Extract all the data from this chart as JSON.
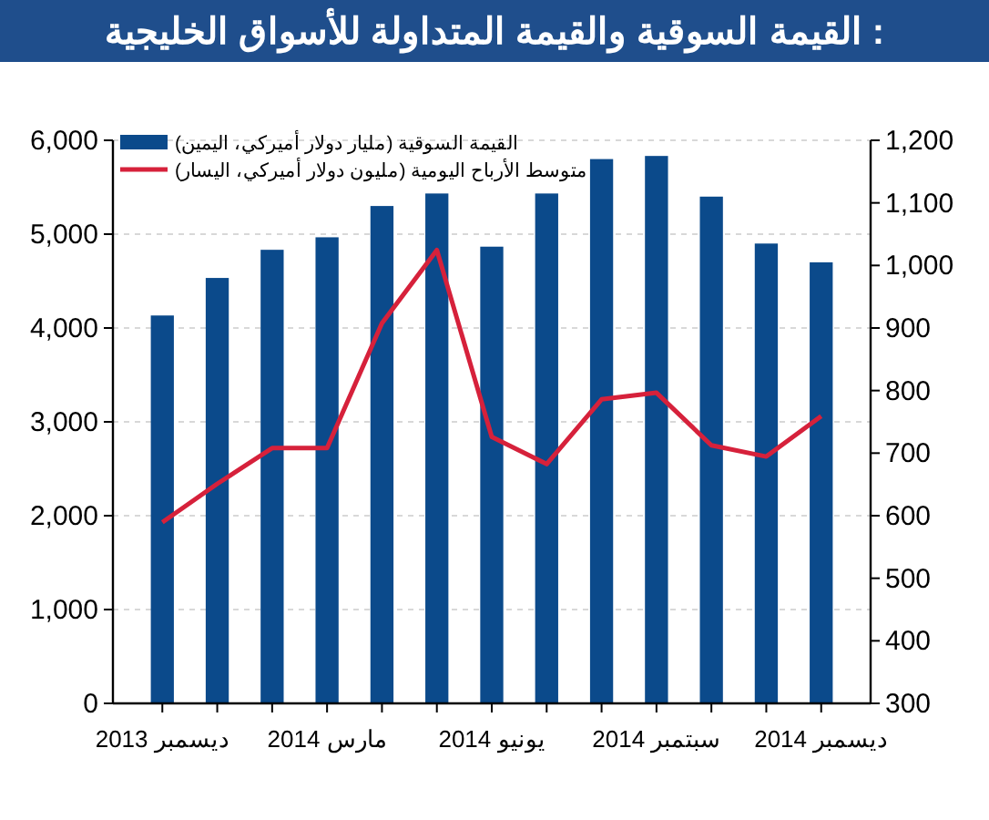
{
  "chart_data": {
    "type": "bar",
    "title": ": القيمة السوقية والقيمة المتداولة للأسواق الخليجية",
    "categories": [
      "ديسمبر 2013",
      null,
      null,
      "مارس 2014",
      null,
      null,
      "يونيو 2014",
      null,
      null,
      "سبتمبر 2014",
      null,
      null,
      "ديسمبر 2014"
    ],
    "series": [
      {
        "name": "القيمة السوقية (مليار دولار أميركي، اليمين)",
        "axis": "y2",
        "color": "#0b4a8b",
        "values": [
          920,
          980,
          1025,
          1045,
          1095,
          1115,
          1030,
          1115,
          1170,
          1175,
          1110,
          1035,
          1005
        ]
      },
      {
        "name": "متوسط الأرباح اليومية (مليون دولار أميركي، اليسار)",
        "type": "line",
        "color": "#d6213b",
        "values": [
          1930,
          2340,
          2720,
          2720,
          4050,
          4830,
          2840,
          2550,
          3240,
          3310,
          2750,
          2630,
          3060
        ]
      }
    ],
    "ylim": [
      0,
      6000
    ],
    "yticks": [
      0,
      {
        "value": 1000,
        "label": "1,000"
      },
      {
        "value": 2000,
        "label": "2,000"
      },
      {
        "value": 3000,
        "label": "3,000"
      },
      {
        "value": 4000,
        "label": "4,000"
      },
      {
        "value": 5000,
        "label": "5,000"
      },
      {
        "value": 6000,
        "label": "6,000"
      }
    ],
    "y2lim": [
      300,
      1200
    ],
    "y2ticks": [
      300,
      400,
      500,
      600,
      700,
      800,
      900,
      {
        "value": 1000,
        "label": "1,000"
      },
      {
        "value": 1100,
        "label": "1,100"
      },
      {
        "value": 1200,
        "label": "1,200"
      }
    ],
    "grid": "y",
    "legend": "top left"
  }
}
